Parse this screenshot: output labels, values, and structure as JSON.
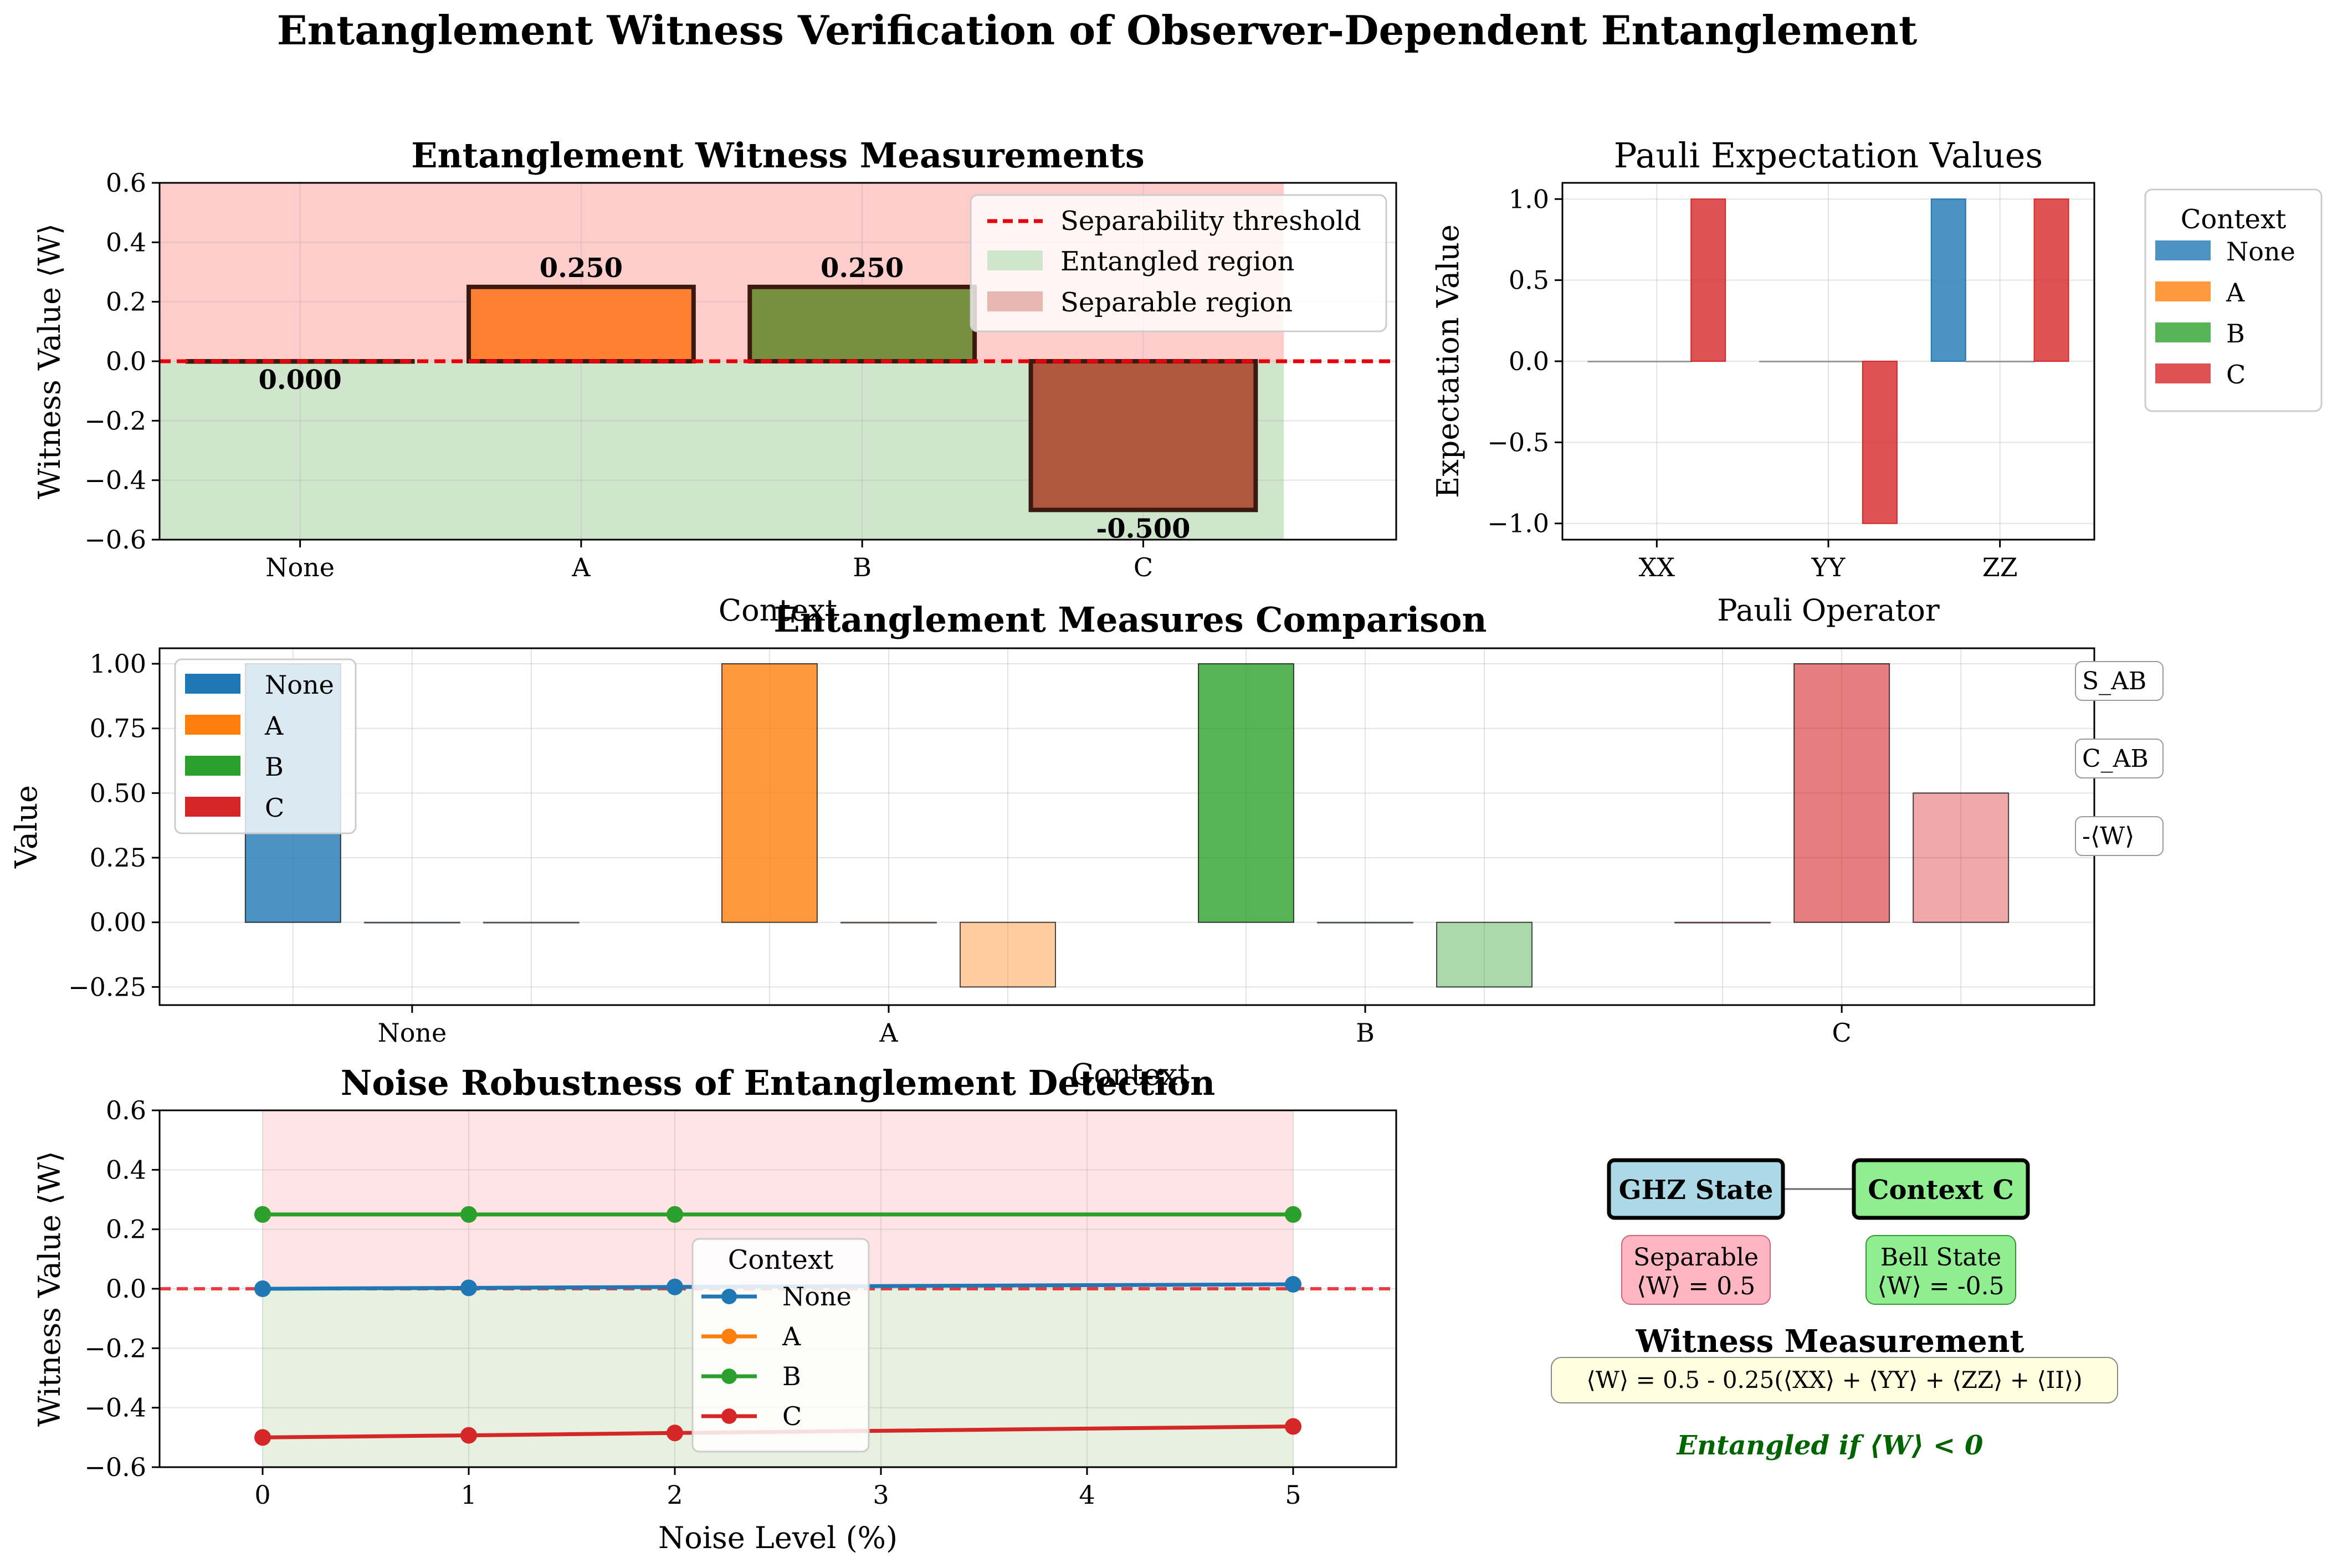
{
  "figure": {
    "suptitle": "Entanglement Witness Verification of Observer-Dependent Entanglement"
  },
  "chart_data": [
    {
      "id": "witness",
      "type": "bar",
      "title": "Entanglement Witness Measurements",
      "xlabel": "Context",
      "ylabel": "Witness Value ⟨W⟩",
      "categories": [
        "None",
        "A",
        "B",
        "C"
      ],
      "values": [
        0.0,
        0.25,
        0.25,
        -0.5
      ],
      "value_labels": [
        "0.000",
        "0.250",
        "0.250",
        "-0.500"
      ],
      "bar_colors": [
        "#3a8fd0",
        "#ff7f33",
        "#77903f",
        "#b0583f"
      ],
      "ylim": [
        -0.6,
        0.6
      ],
      "yticks": [
        -0.6,
        -0.4,
        -0.2,
        0.0,
        0.2,
        0.4,
        0.6
      ],
      "ytick_labels": [
        "−0.6",
        "−0.4",
        "−0.2",
        "0.0",
        "0.2",
        "0.4",
        "0.6"
      ],
      "threshold": 0.0,
      "legend": {
        "placement": "top-right",
        "entries": [
          {
            "label": "Separability threshold",
            "kind": "dashed-line",
            "color": "#e8000b"
          },
          {
            "label": "Entangled region",
            "kind": "patch",
            "color": "#cfe6cc"
          },
          {
            "label": "Separable region",
            "kind": "patch",
            "color": "#e8b8b0"
          }
        ]
      },
      "regions": {
        "separable_color": "#ffcccc",
        "entangled_color": "#cfe6cc"
      },
      "grid": true
    },
    {
      "id": "pauli",
      "type": "bar",
      "title": "Pauli Expectation Values",
      "xlabel": "Pauli Operator",
      "ylabel": "Expectation Value",
      "categories": [
        "XX",
        "YY",
        "ZZ"
      ],
      "series": [
        {
          "name": "None",
          "color": "#1f77b4",
          "values": [
            0,
            0,
            1
          ]
        },
        {
          "name": "A",
          "color": "#ff7f0e",
          "values": [
            0,
            0,
            0
          ]
        },
        {
          "name": "B",
          "color": "#2ca02c",
          "values": [
            0,
            0,
            0
          ]
        },
        {
          "name": "C",
          "color": "#d62728",
          "values": [
            1,
            -1,
            1
          ]
        }
      ],
      "ylim": [
        -1.1,
        1.1
      ],
      "yticks": [
        -1.0,
        -0.5,
        0.0,
        0.5,
        1.0
      ],
      "ytick_labels": [
        "−1.0",
        "−0.5",
        "0.0",
        "0.5",
        "1.0"
      ],
      "legend": {
        "title": "Context",
        "placement": "outside-right"
      },
      "grid": true
    },
    {
      "id": "measures",
      "type": "bar",
      "title": "Entanglement Measures Comparison",
      "xlabel": "Context",
      "ylabel": "Value",
      "categories": [
        "None",
        "A",
        "B",
        "C"
      ],
      "measure_labels": [
        "S_AB",
        "C_AB",
        "-⟨W⟩"
      ],
      "colors": [
        "#1f77b4",
        "#ff7f0e",
        "#2ca02c",
        "#d62728"
      ],
      "values": [
        [
          1.0,
          0.0,
          0.0
        ],
        [
          1.0,
          0.0,
          -0.25
        ],
        [
          1.0,
          0.0,
          -0.25
        ],
        [
          0.0,
          1.0,
          0.5
        ]
      ],
      "ylim": [
        -0.25,
        1.0
      ],
      "yticks": [
        -0.25,
        0.0,
        0.25,
        0.5,
        0.75,
        1.0
      ],
      "ytick_labels": [
        "−0.25",
        "0.00",
        "0.25",
        "0.50",
        "0.75",
        "1.00"
      ],
      "legend": {
        "placement": "top-left",
        "entries": [
          "None",
          "A",
          "B",
          "C"
        ]
      },
      "grid": true
    },
    {
      "id": "noise",
      "type": "line",
      "title": "Noise Robustness of Entanglement Detection",
      "xlabel": "Noise Level (%)",
      "ylabel": "Witness Value ⟨W⟩",
      "x": [
        0,
        1,
        2,
        5
      ],
      "series": [
        {
          "name": "None",
          "color": "#1f77b4",
          "values": [
            0.0,
            0.003,
            0.006,
            0.015
          ]
        },
        {
          "name": "A",
          "color": "#ff7f0e",
          "values": [
            0.25,
            0.25,
            0.25,
            0.25
          ]
        },
        {
          "name": "B",
          "color": "#2ca02c",
          "values": [
            0.25,
            0.25,
            0.25,
            0.25
          ]
        },
        {
          "name": "C",
          "color": "#d62728",
          "values": [
            -0.5,
            -0.493,
            -0.485,
            -0.463
          ]
        }
      ],
      "xlim": [
        -0.5,
        5.5
      ],
      "xticks": [
        0,
        1,
        2,
        3,
        4,
        5
      ],
      "ylim": [
        -0.6,
        0.6
      ],
      "yticks": [
        -0.6,
        -0.4,
        -0.2,
        0.0,
        0.2,
        0.4,
        0.6
      ],
      "ytick_labels": [
        "−0.6",
        "−0.4",
        "−0.2",
        "0.0",
        "0.2",
        "0.4",
        "0.6"
      ],
      "threshold": 0.0,
      "regions": {
        "separable_color": "#ffe4e6",
        "entangled_color": "#e6f1e0"
      },
      "legend": {
        "title": "Context",
        "placement": "center"
      },
      "grid": true
    }
  ],
  "diagram": {
    "ghz_label": "GHZ State",
    "context_label": "Context C",
    "ghz_note_line1": "Separable",
    "ghz_note_line2": "⟨W⟩ = 0.5",
    "context_note_line1": "Bell State",
    "context_note_line2": "⟨W⟩ = -0.5",
    "heading": "Witness Measurement",
    "formula": "⟨W⟩ = 0.5 - 0.25(⟨XX⟩ + ⟨YY⟩ + ⟨ZZ⟩ + ⟨II⟩)",
    "conclusion": "Entangled if ⟨W⟩ < 0",
    "colors": {
      "ghz_fill": "#add8e6",
      "context_fill": "#90ee90",
      "ghz_note_fill": "#ffb6c1",
      "context_note_fill": "#90ee90",
      "formula_fill": "#ffffe0",
      "conclusion": "#006400"
    }
  }
}
